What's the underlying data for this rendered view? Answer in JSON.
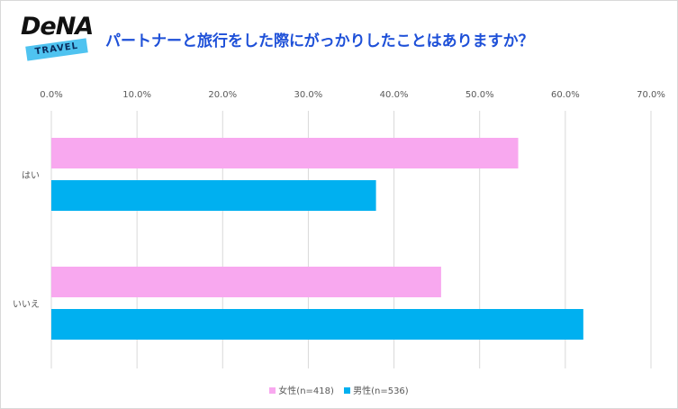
{
  "logo": {
    "brand": "DeNA",
    "tag": "TRAVEL"
  },
  "chart_data": {
    "type": "bar",
    "orientation": "horizontal",
    "title": "パートナーと旅行をした際にがっかりしたことはありますか？",
    "categories": [
      "はい",
      "いいえ"
    ],
    "series": [
      {
        "name": "女性(n=418)",
        "color": "#f8a8ef",
        "values": [
          54.5,
          45.5
        ]
      },
      {
        "name": "男性(n=536)",
        "color": "#00b0f0",
        "values": [
          37.9,
          62.1
        ]
      }
    ],
    "xlim": [
      0,
      70
    ],
    "xticks": [
      0,
      10,
      20,
      30,
      40,
      50,
      60,
      70
    ],
    "tick_labels": [
      "0.0%",
      "10.0%",
      "20.0%",
      "30.0%",
      "40.0%",
      "50.0%",
      "60.0%",
      "70.0%"
    ],
    "grid": true,
    "legend_position": "bottom"
  }
}
